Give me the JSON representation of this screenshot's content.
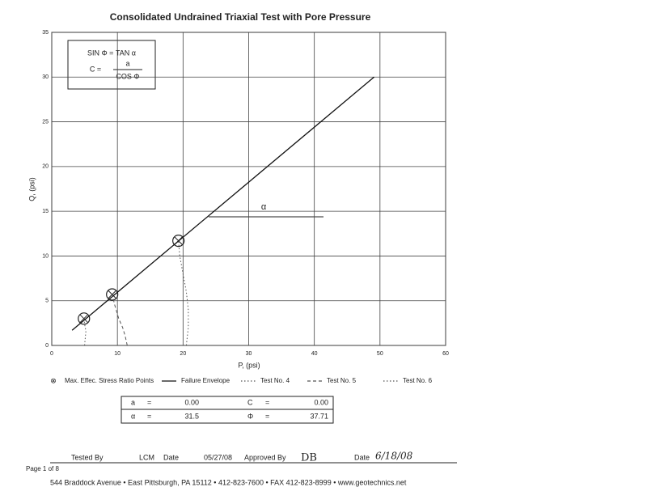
{
  "chart_data": {
    "type": "line",
    "title": "Consolidated Undrained Triaxial Test with Pore Pressure",
    "x_label": "P, (psi)",
    "y_label": "Q, (psi)",
    "xlim": [
      0,
      60
    ],
    "ylim": [
      0,
      35
    ],
    "xticks": [
      0,
      10,
      20,
      30,
      40,
      50,
      60
    ],
    "yticks": [
      0,
      5,
      10,
      15,
      20,
      25,
      30,
      35
    ],
    "grid": true,
    "equations": [
      "SIN Φ = TAN α",
      "C =",
      "a",
      "COS Φ"
    ],
    "annotations": [
      "α"
    ],
    "series": [
      {
        "name": "Max. Effec. Stress Ratio Points",
        "type": "scatter",
        "style": "circle-x",
        "color": "#222",
        "x": [
          4.9,
          9.2,
          19.3
        ],
        "values": [
          3.0,
          5.7,
          11.7
        ]
      },
      {
        "name": "Failure Envelope",
        "type": "line",
        "style": "solid",
        "color": "#111",
        "x": [
          3.1,
          49.1
        ],
        "values": [
          1.7,
          30.0
        ]
      },
      {
        "name": "Test No. 4",
        "type": "line",
        "style": "dotted",
        "color": "#555",
        "x": [
          5.0,
          5.1,
          5.2,
          5.0,
          4.9
        ],
        "values": [
          0,
          0.8,
          1.6,
          2.4,
          3.0
        ]
      },
      {
        "name": "Test No. 5",
        "type": "line",
        "style": "dashed",
        "color": "#555",
        "x": [
          11.5,
          11.2,
          10.8,
          10.2,
          9.6,
          9.2
        ],
        "values": [
          0,
          1,
          2,
          3,
          4.5,
          5.7
        ]
      },
      {
        "name": "Test No. 6",
        "type": "line",
        "style": "dotted",
        "color": "#555",
        "x": [
          20.5,
          20.8,
          20.8,
          20.5,
          20.0,
          19.5,
          19.3
        ],
        "values": [
          0,
          2,
          4,
          6,
          8,
          10,
          11.7
        ]
      }
    ]
  },
  "results": {
    "rows": [
      [
        "a",
        "=",
        "0.00",
        "C",
        "=",
        "0.00"
      ],
      [
        "α",
        "=",
        "31.5",
        "Φ",
        "=",
        "37.71"
      ]
    ]
  },
  "footer": {
    "tested_by_label": "Tested By",
    "tested_by": "LCM",
    "date_label": "Date",
    "date": "05/27/08",
    "approved_by_label": "Approved By",
    "approved_by": "DB",
    "date2_label": "Date",
    "date2": "6/18/08",
    "page": "Page 1 of 8",
    "address": "544 Braddock Avenue • East Pittsburgh, PA 15112 • 412-823-7600 • FAX 412-823-8999 • www.geotechnics.net"
  }
}
